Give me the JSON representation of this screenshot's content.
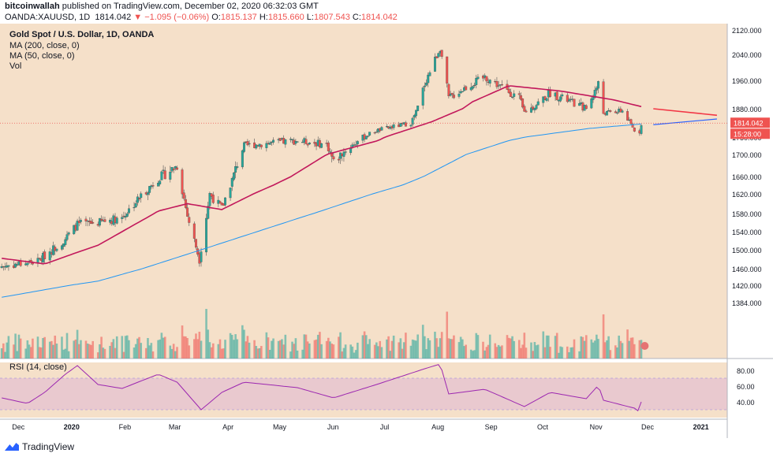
{
  "header": {
    "publisher": "bitcoinwallah",
    "published_text": "published on TradingView.com, December 02, 2020 06:32:03 GMT",
    "symbol_line": "OANDA:XAUUSD, 1D",
    "last": "1814.042",
    "change": "−1.095 (−0.06%)",
    "o_label": "O:",
    "o": "1815.137",
    "h_label": "H:",
    "h": "1815.660",
    "l_label": "L:",
    "l": "1807.543",
    "c_label": "C:",
    "c": "1814.042"
  },
  "legend": {
    "title": "Gold Spot / U.S. Dollar, 1D, OANDA",
    "ma200": "MA (200, close, 0)",
    "ma50": "MA (50, close, 0)",
    "vol": "Vol",
    "rsi": "RSI (14, close)"
  },
  "price_badge": "1814.042",
  "time_badge": "15:28:00",
  "footer": {
    "brand": "TradingView"
  },
  "colors": {
    "background": "#f5e0c9",
    "rsi_band": "#e9c9cf",
    "up": "#26a69a",
    "down": "#ef5350",
    "ma50": "#c2185b",
    "ma200": "#2196f3",
    "rsi": "#9c27b0",
    "trend_red": "#f23645",
    "trend_blue": "#2962ff"
  },
  "chart_data": [
    {
      "type": "candlestick",
      "title": "Gold Spot / U.S. Dollar, 1D, OANDA",
      "y_axis_ticks": [
        "2120.000",
        "2040.000",
        "1960.000",
        "1880.000",
        "1750.000",
        "1700.000",
        "1660.000",
        "1620.000",
        "1580.000",
        "1540.000",
        "1500.000",
        "1460.000",
        "1420.000",
        "1384.000"
      ],
      "x_axis_ticks": [
        "Dec",
        "2020",
        "Feb",
        "Mar",
        "Apr",
        "May",
        "Jun",
        "Jul",
        "Aug",
        "Sep",
        "Oct",
        "Nov",
        "Dec",
        "2021"
      ],
      "ylim": [
        1360,
        2125
      ],
      "last_price": 1814.042,
      "anchors": [
        {
          "date": "2019-11-25",
          "close": 1465
        },
        {
          "date": "2019-12-16",
          "close": 1476
        },
        {
          "date": "2019-12-31",
          "close": 1520
        },
        {
          "date": "2020-01-08",
          "close": 1556
        },
        {
          "date": "2020-01-20",
          "close": 1560
        },
        {
          "date": "2020-02-03",
          "close": 1572
        },
        {
          "date": "2020-02-24",
          "close": 1655
        },
        {
          "date": "2020-03-06",
          "close": 1680
        },
        {
          "date": "2020-03-12",
          "close": 1575
        },
        {
          "date": "2020-03-19",
          "close": 1480
        },
        {
          "date": "2020-03-25",
          "close": 1620
        },
        {
          "date": "2020-04-01",
          "close": 1590
        },
        {
          "date": "2020-04-14",
          "close": 1725
        },
        {
          "date": "2020-04-23",
          "close": 1730
        },
        {
          "date": "2020-05-15",
          "close": 1740
        },
        {
          "date": "2020-06-01",
          "close": 1728
        },
        {
          "date": "2020-06-05",
          "close": 1685
        },
        {
          "date": "2020-06-30",
          "close": 1780
        },
        {
          "date": "2020-07-20",
          "close": 1815
        },
        {
          "date": "2020-07-28",
          "close": 1950
        },
        {
          "date": "2020-08-06",
          "close": 2062
        },
        {
          "date": "2020-08-11",
          "close": 1910
        },
        {
          "date": "2020-08-19",
          "close": 1935
        },
        {
          "date": "2020-09-01",
          "close": 1970
        },
        {
          "date": "2020-09-21",
          "close": 1910
        },
        {
          "date": "2020-09-24",
          "close": 1865
        },
        {
          "date": "2020-10-09",
          "close": 1925
        },
        {
          "date": "2020-10-30",
          "close": 1880
        },
        {
          "date": "2020-11-06",
          "close": 1950
        },
        {
          "date": "2020-11-09",
          "close": 1860
        },
        {
          "date": "2020-11-20",
          "close": 1870
        },
        {
          "date": "2020-11-27",
          "close": 1780
        },
        {
          "date": "2020-11-30",
          "close": 1776
        },
        {
          "date": "2020-12-01",
          "close": 1814
        }
      ],
      "ma50_anchors": [
        {
          "date": "2019-11-25",
          "value": 1482
        },
        {
          "date": "2019-12-20",
          "value": 1470
        },
        {
          "date": "2020-01-20",
          "value": 1510
        },
        {
          "date": "2020-02-24",
          "value": 1585
        },
        {
          "date": "2020-03-12",
          "value": 1600
        },
        {
          "date": "2020-04-01",
          "value": 1588
        },
        {
          "date": "2020-05-01",
          "value": 1640
        },
        {
          "date": "2020-06-01",
          "value": 1700
        },
        {
          "date": "2020-07-01",
          "value": 1740
        },
        {
          "date": "2020-08-01",
          "value": 1820
        },
        {
          "date": "2020-08-25",
          "value": 1900
        },
        {
          "date": "2020-09-15",
          "value": 1945
        },
        {
          "date": "2020-10-15",
          "value": 1930
        },
        {
          "date": "2020-11-15",
          "value": 1905
        },
        {
          "date": "2020-12-01",
          "value": 1886
        }
      ],
      "ma200_anchors": [
        {
          "date": "2019-11-25",
          "value": 1395
        },
        {
          "date": "2020-01-20",
          "value": 1430
        },
        {
          "date": "2020-03-20",
          "value": 1500
        },
        {
          "date": "2020-05-20",
          "value": 1575
        },
        {
          "date": "2020-07-15",
          "value": 1640
        },
        {
          "date": "2020-09-15",
          "value": 1740
        },
        {
          "date": "2020-11-01",
          "value": 1790
        },
        {
          "date": "2020-12-01",
          "value": 1810
        }
      ],
      "trendlines": [
        {
          "color": "red",
          "from": {
            "date": "2020-12-08",
            "value": 1880
          },
          "to": {
            "date": "2021-01-14",
            "value": 1850
          }
        },
        {
          "color": "blue",
          "from": {
            "date": "2020-12-08",
            "value": 1807
          },
          "to": {
            "date": "2021-01-14",
            "value": 1833
          }
        }
      ]
    },
    {
      "type": "line",
      "title": "RSI (14, close)",
      "y_axis_ticks": [
        "80.00",
        "60.00",
        "40.00"
      ],
      "band": [
        30,
        70
      ],
      "ylim": [
        20,
        90
      ],
      "anchors": [
        {
          "date": "2019-11-25",
          "value": 45
        },
        {
          "date": "2019-12-10",
          "value": 38
        },
        {
          "date": "2019-12-20",
          "value": 52
        },
        {
          "date": "2020-01-01",
          "value": 75
        },
        {
          "date": "2020-01-08",
          "value": 86
        },
        {
          "date": "2020-01-20",
          "value": 62
        },
        {
          "date": "2020-02-03",
          "value": 57
        },
        {
          "date": "2020-02-24",
          "value": 75
        },
        {
          "date": "2020-03-06",
          "value": 65
        },
        {
          "date": "2020-03-20",
          "value": 30
        },
        {
          "date": "2020-04-01",
          "value": 52
        },
        {
          "date": "2020-04-14",
          "value": 65
        },
        {
          "date": "2020-05-15",
          "value": 58
        },
        {
          "date": "2020-06-05",
          "value": 45
        },
        {
          "date": "2020-06-30",
          "value": 62
        },
        {
          "date": "2020-07-28",
          "value": 82
        },
        {
          "date": "2020-08-06",
          "value": 88
        },
        {
          "date": "2020-08-11",
          "value": 50
        },
        {
          "date": "2020-09-01",
          "value": 56
        },
        {
          "date": "2020-09-24",
          "value": 34
        },
        {
          "date": "2020-10-09",
          "value": 52
        },
        {
          "date": "2020-10-30",
          "value": 44
        },
        {
          "date": "2020-11-06",
          "value": 61
        },
        {
          "date": "2020-11-09",
          "value": 42
        },
        {
          "date": "2020-11-27",
          "value": 32
        },
        {
          "date": "2020-11-30",
          "value": 27
        },
        {
          "date": "2020-12-01",
          "value": 40
        }
      ]
    }
  ]
}
